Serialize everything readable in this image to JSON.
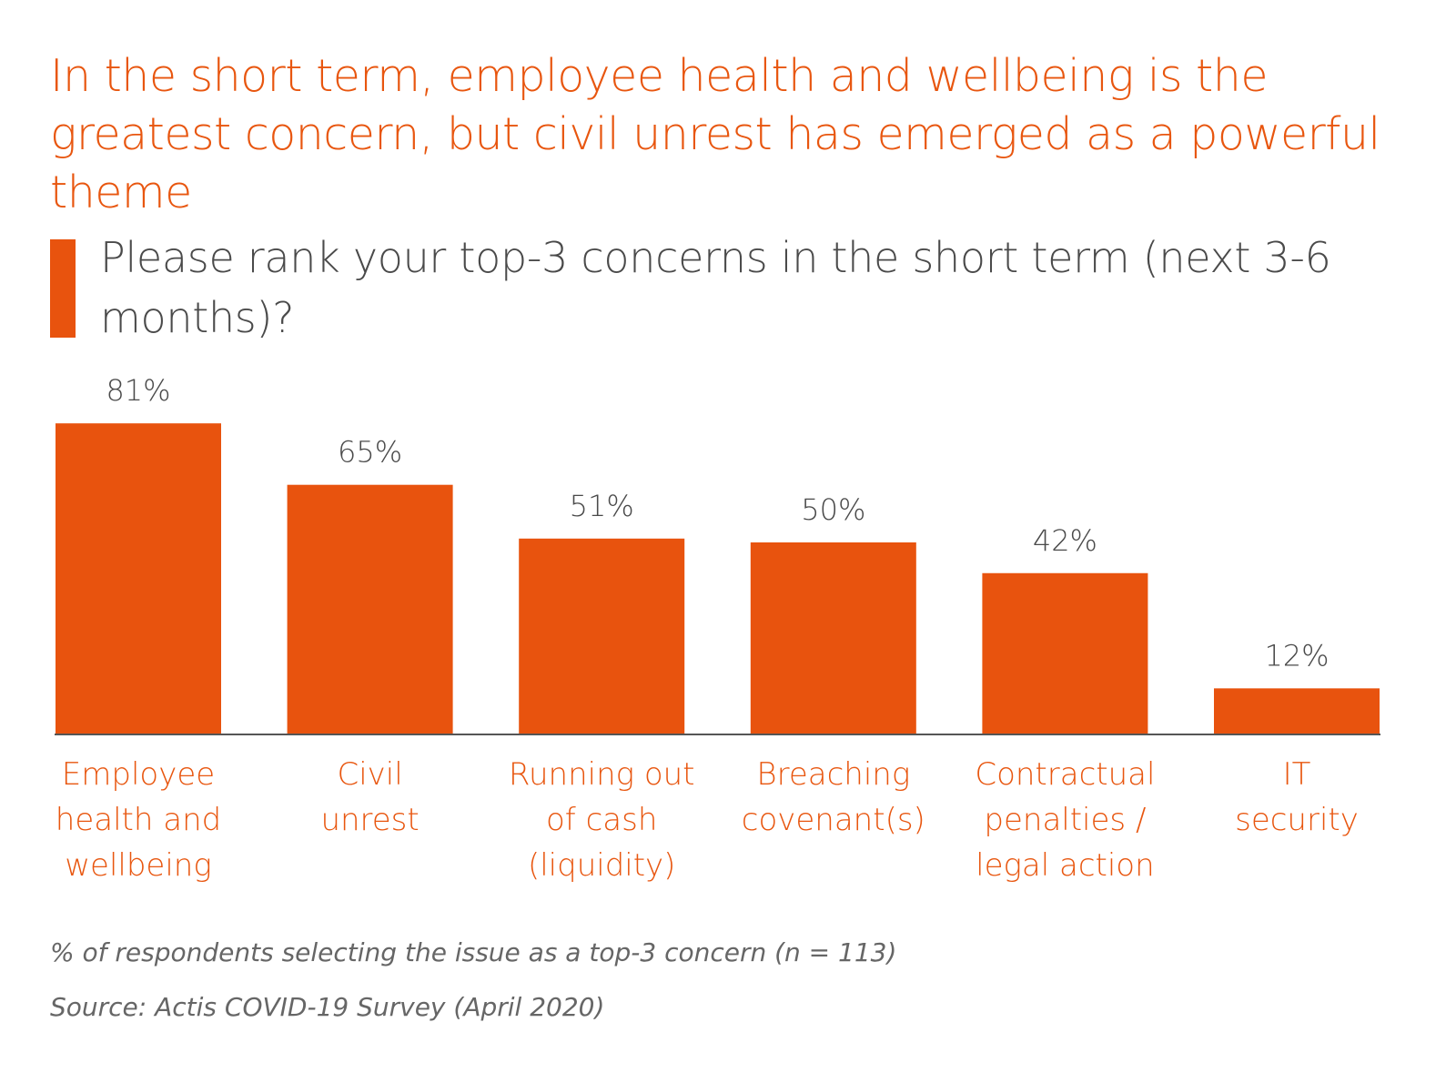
{
  "headline": "In the short term, employee health and wellbeing is the greatest concern, but civil unrest has emerged as a powerful theme",
  "question": "Please rank your top-3 concerns in the short term (next 3-6 months)?",
  "footnote": "% of respondents selecting the issue as a top-3 concern (n = 113)",
  "source": "Source: Actis COVID-19 Survey (April 2020)",
  "colors": {
    "bar": "#e8530e",
    "headline": "#e8560f",
    "category_label": "#e8560f",
    "value_label": "#4a4a4a",
    "axis": "#555555"
  },
  "chart_data": {
    "type": "bar",
    "categories": [
      [
        "Employee",
        "health and",
        "wellbeing"
      ],
      [
        "Civil",
        "unrest"
      ],
      [
        "Running out",
        "of cash",
        "(liquidity)"
      ],
      [
        "Breaching",
        "covenant(s)"
      ],
      [
        "Contractual",
        "penalties /",
        "legal action"
      ],
      [
        "IT",
        "security"
      ]
    ],
    "values": [
      81,
      65,
      51,
      50,
      42,
      12
    ],
    "value_labels": [
      "81%",
      "65%",
      "51%",
      "50%",
      "42%",
      "12%"
    ],
    "unit": "%",
    "title": "Please rank your top-3 concerns in the short term (next 3-6 months)?",
    "xlabel": "",
    "ylabel": "",
    "grid": false,
    "legend": "none"
  }
}
